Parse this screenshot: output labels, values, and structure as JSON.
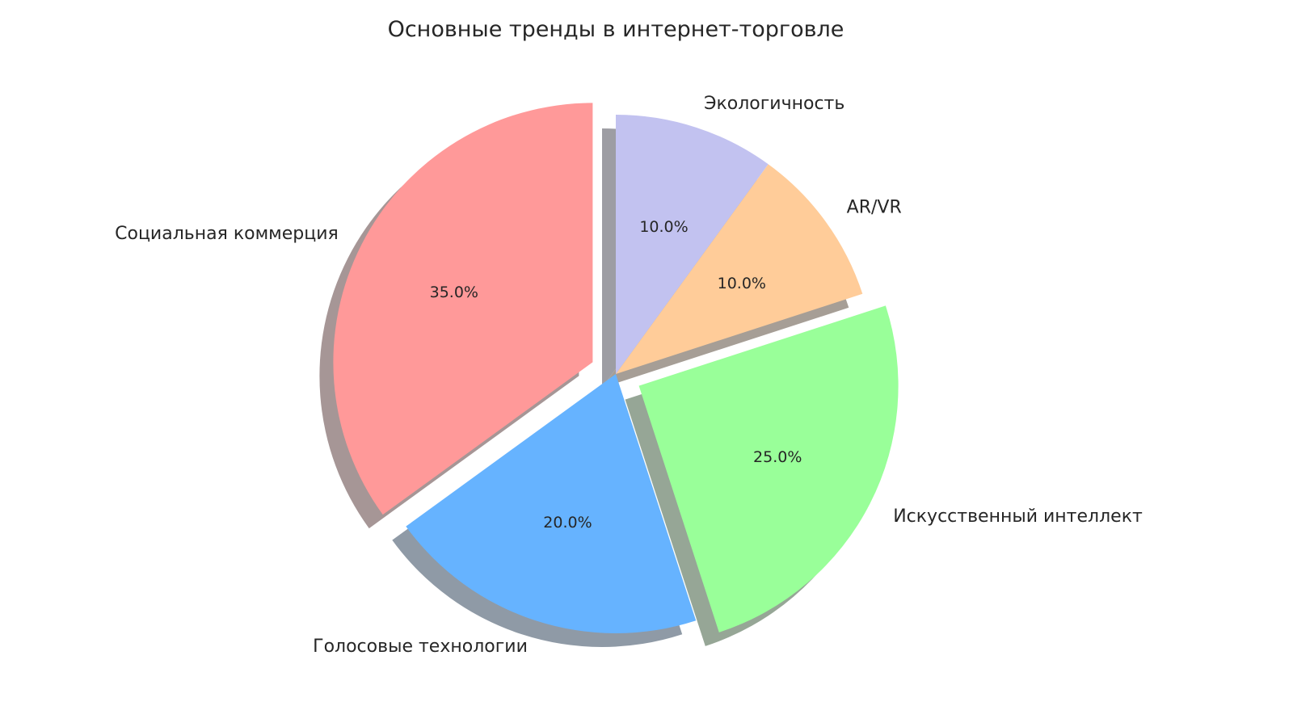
{
  "chart_data": {
    "type": "pie",
    "title": "Основные тренды в интернет-торговле",
    "start_angle": 90,
    "direction": "counterclockwise",
    "shadow": true,
    "slices": [
      {
        "label": "Социальная коммерция",
        "value": 35,
        "pct_label": "35.0%",
        "color": "#ff9999",
        "exploded": true
      },
      {
        "label": "Голосовые технологии",
        "value": 20,
        "pct_label": "20.0%",
        "color": "#66b3ff",
        "exploded": false
      },
      {
        "label": "Искусственный интеллект",
        "value": 25,
        "pct_label": "25.0%",
        "color": "#99ff99",
        "exploded": true
      },
      {
        "label": "AR/VR",
        "value": 10,
        "pct_label": "10.0%",
        "color": "#ffcc99",
        "exploded": false
      },
      {
        "label": "Экологичность",
        "value": 10,
        "pct_label": "10.0%",
        "color": "#c2c2f0",
        "exploded": false
      }
    ],
    "explode_amount": 0.1
  }
}
